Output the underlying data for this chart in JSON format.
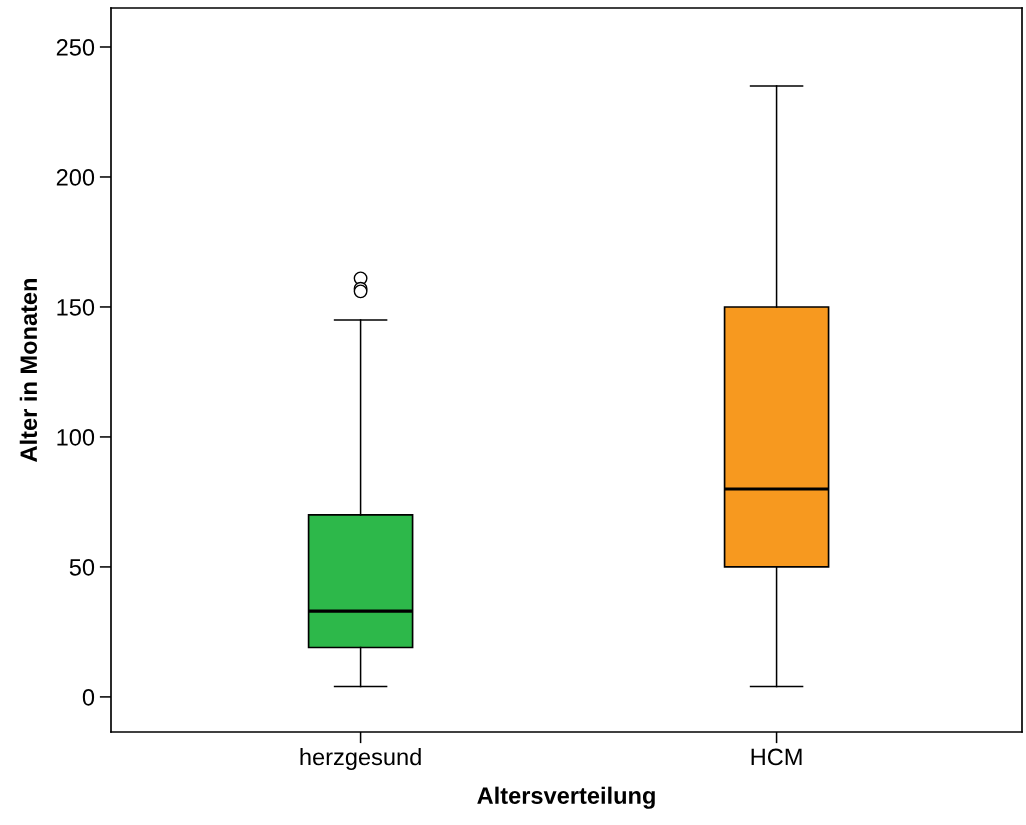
{
  "chart_data": {
    "type": "box",
    "xlabel": "Altersverteilung",
    "ylabel": "Alter in Monaten",
    "categories": [
      "herzgesund",
      "HCM"
    ],
    "colors": [
      "#2db84a",
      "#f7991f"
    ],
    "boxes": [
      {
        "low": 4,
        "q1": 19,
        "median": 33,
        "q3": 70,
        "high": 145,
        "outliers": [
          161,
          157,
          156
        ]
      },
      {
        "low": 4,
        "q1": 50,
        "median": 80,
        "q3": 150,
        "high": 235
      }
    ],
    "ylim": [
      -13.5,
      265
    ],
    "yticks": [
      0,
      50,
      100,
      150,
      200,
      250
    ],
    "grid": false
  }
}
